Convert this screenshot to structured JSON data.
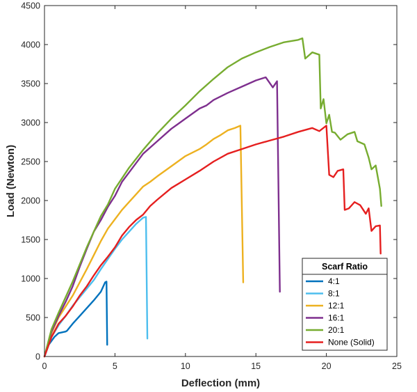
{
  "chart_data": {
    "type": "line",
    "xlabel": "Deflection (mm)",
    "ylabel": "Load (Newton)",
    "xlim": [
      0,
      25
    ],
    "ylim": [
      0,
      4500
    ],
    "xticks": [
      0,
      5,
      10,
      15,
      20,
      25
    ],
    "yticks": [
      0,
      500,
      1000,
      1500,
      2000,
      2500,
      3000,
      3500,
      4000,
      4500
    ],
    "grid": false,
    "legend": {
      "title": "Scarf Ratio",
      "placement": "bottom-right"
    },
    "series": [
      {
        "name": "4:1",
        "color": "#0072BD",
        "points": [
          [
            0,
            0
          ],
          [
            0.3,
            150
          ],
          [
            0.7,
            250
          ],
          [
            1.0,
            300
          ],
          [
            1.5,
            320
          ],
          [
            1.6,
            330
          ],
          [
            2.0,
            420
          ],
          [
            2.5,
            520
          ],
          [
            3.0,
            620
          ],
          [
            3.5,
            720
          ],
          [
            4.0,
            830
          ],
          [
            4.3,
            950
          ],
          [
            4.4,
            960
          ],
          [
            4.45,
            150
          ]
        ]
      },
      {
        "name": "8:1",
        "color": "#4DBEEE",
        "points": [
          [
            0,
            0
          ],
          [
            0.5,
            250
          ],
          [
            1.0,
            400
          ],
          [
            1.5,
            520
          ],
          [
            2.0,
            650
          ],
          [
            2.5,
            760
          ],
          [
            3.0,
            870
          ],
          [
            3.5,
            980
          ],
          [
            4.0,
            1120
          ],
          [
            4.5,
            1250
          ],
          [
            5.0,
            1380
          ],
          [
            5.5,
            1500
          ],
          [
            6.0,
            1600
          ],
          [
            6.5,
            1700
          ],
          [
            7.0,
            1780
          ],
          [
            7.2,
            1790
          ],
          [
            7.3,
            230
          ]
        ]
      },
      {
        "name": "12:1",
        "color": "#EDB120",
        "points": [
          [
            0,
            0
          ],
          [
            0.5,
            300
          ],
          [
            1.0,
            500
          ],
          [
            1.5,
            640
          ],
          [
            2.0,
            780
          ],
          [
            2.5,
            950
          ],
          [
            3.0,
            1120
          ],
          [
            3.5,
            1300
          ],
          [
            4.0,
            1480
          ],
          [
            4.5,
            1640
          ],
          [
            5.0,
            1760
          ],
          [
            5.5,
            1880
          ],
          [
            6.0,
            1980
          ],
          [
            6.5,
            2080
          ],
          [
            7.0,
            2180
          ],
          [
            7.5,
            2240
          ],
          [
            8.0,
            2310
          ],
          [
            9.0,
            2440
          ],
          [
            10.0,
            2570
          ],
          [
            11.0,
            2660
          ],
          [
            11.5,
            2720
          ],
          [
            12.0,
            2790
          ],
          [
            12.5,
            2840
          ],
          [
            13.0,
            2900
          ],
          [
            13.5,
            2930
          ],
          [
            13.9,
            2960
          ],
          [
            14.1,
            950
          ]
        ]
      },
      {
        "name": "16:1",
        "color": "#7E2F8E",
        "points": [
          [
            0,
            0
          ],
          [
            0.5,
            320
          ],
          [
            1.0,
            520
          ],
          [
            1.5,
            700
          ],
          [
            2.0,
            900
          ],
          [
            2.5,
            1150
          ],
          [
            3.0,
            1380
          ],
          [
            3.5,
            1600
          ],
          [
            4.0,
            1750
          ],
          [
            4.5,
            1920
          ],
          [
            5.0,
            2060
          ],
          [
            5.5,
            2240
          ],
          [
            6.0,
            2360
          ],
          [
            7.0,
            2600
          ],
          [
            8.0,
            2760
          ],
          [
            9.0,
            2920
          ],
          [
            10.0,
            3050
          ],
          [
            11.0,
            3180
          ],
          [
            11.5,
            3220
          ],
          [
            12.0,
            3290
          ],
          [
            13.0,
            3380
          ],
          [
            14.0,
            3460
          ],
          [
            15.0,
            3540
          ],
          [
            15.7,
            3580
          ],
          [
            16.2,
            3450
          ],
          [
            16.5,
            3530
          ],
          [
            16.7,
            830
          ]
        ]
      },
      {
        "name": "20:1",
        "color": "#77AC30",
        "points": [
          [
            0,
            0
          ],
          [
            0.5,
            350
          ],
          [
            1.0,
            560
          ],
          [
            1.5,
            760
          ],
          [
            2.0,
            960
          ],
          [
            2.5,
            1180
          ],
          [
            3.0,
            1400
          ],
          [
            3.5,
            1600
          ],
          [
            4.0,
            1800
          ],
          [
            4.5,
            1950
          ],
          [
            5.0,
            2150
          ],
          [
            6.0,
            2420
          ],
          [
            7.0,
            2650
          ],
          [
            8.0,
            2860
          ],
          [
            9.0,
            3050
          ],
          [
            10.0,
            3220
          ],
          [
            11.0,
            3400
          ],
          [
            12.0,
            3560
          ],
          [
            13.0,
            3710
          ],
          [
            14.0,
            3820
          ],
          [
            15.0,
            3900
          ],
          [
            16.0,
            3970
          ],
          [
            17.0,
            4030
          ],
          [
            18.0,
            4060
          ],
          [
            18.3,
            4080
          ],
          [
            18.5,
            3820
          ],
          [
            19.0,
            3900
          ],
          [
            19.5,
            3870
          ],
          [
            19.6,
            3180
          ],
          [
            19.8,
            3300
          ],
          [
            20.0,
            2990
          ],
          [
            20.2,
            3100
          ],
          [
            20.4,
            2880
          ],
          [
            20.6,
            2870
          ],
          [
            21.0,
            2780
          ],
          [
            21.5,
            2850
          ],
          [
            22.0,
            2880
          ],
          [
            22.2,
            2760
          ],
          [
            22.7,
            2720
          ],
          [
            23.0,
            2550
          ],
          [
            23.2,
            2400
          ],
          [
            23.5,
            2450
          ],
          [
            23.8,
            2150
          ],
          [
            23.9,
            1930
          ]
        ]
      },
      {
        "name": "None (Solid)",
        "color": "#E51F1F",
        "points": [
          [
            0,
            0
          ],
          [
            0.5,
            250
          ],
          [
            1.0,
            420
          ],
          [
            1.5,
            520
          ],
          [
            2.0,
            640
          ],
          [
            2.5,
            780
          ],
          [
            3.0,
            900
          ],
          [
            3.5,
            1040
          ],
          [
            4.0,
            1170
          ],
          [
            4.5,
            1280
          ],
          [
            5.0,
            1400
          ],
          [
            5.5,
            1550
          ],
          [
            6.0,
            1660
          ],
          [
            6.5,
            1750
          ],
          [
            7.0,
            1820
          ],
          [
            7.5,
            1930
          ],
          [
            8.0,
            2010
          ],
          [
            9.0,
            2160
          ],
          [
            10.0,
            2270
          ],
          [
            11.0,
            2380
          ],
          [
            12.0,
            2500
          ],
          [
            13.0,
            2600
          ],
          [
            14.0,
            2660
          ],
          [
            15.0,
            2720
          ],
          [
            16.0,
            2770
          ],
          [
            17.0,
            2820
          ],
          [
            18.0,
            2880
          ],
          [
            19.0,
            2930
          ],
          [
            19.5,
            2890
          ],
          [
            20.0,
            2960
          ],
          [
            20.2,
            2330
          ],
          [
            20.5,
            2300
          ],
          [
            20.8,
            2380
          ],
          [
            21.2,
            2400
          ],
          [
            21.3,
            1880
          ],
          [
            21.6,
            1900
          ],
          [
            22.0,
            1980
          ],
          [
            22.4,
            1940
          ],
          [
            22.8,
            1830
          ],
          [
            23.0,
            1900
          ],
          [
            23.2,
            1610
          ],
          [
            23.5,
            1670
          ],
          [
            23.8,
            1680
          ],
          [
            23.85,
            1320
          ]
        ]
      }
    ]
  }
}
